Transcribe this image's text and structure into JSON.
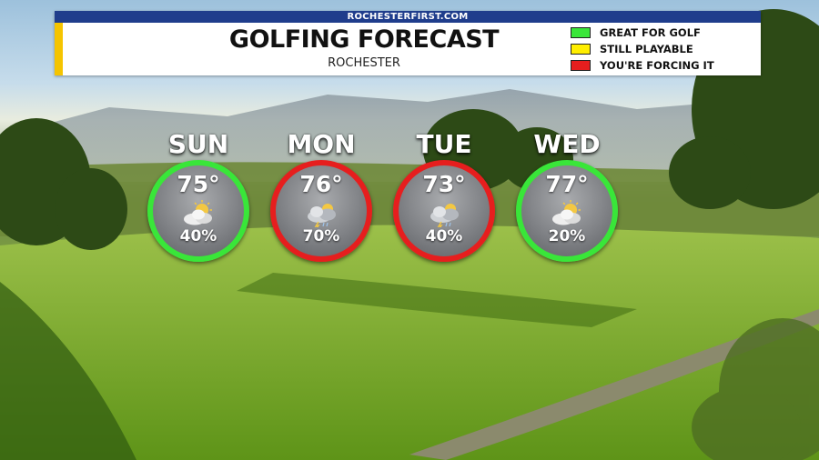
{
  "header": {
    "site": "ROCHESTERFIRST.COM",
    "title": "GOLFING FORECAST",
    "subtitle": "ROCHESTER"
  },
  "legend": [
    {
      "label": "GREAT FOR GOLF",
      "color": "#39e639"
    },
    {
      "label": "STILL PLAYABLE",
      "color": "#ffee00"
    },
    {
      "label": "YOU'RE FORCING IT",
      "color": "#e61e1e"
    }
  ],
  "days": [
    {
      "name": "SUN",
      "temp": "75°",
      "precip": "40%",
      "rating_color": "#39e639",
      "icon": "partly-sunny-icon"
    },
    {
      "name": "MON",
      "temp": "76°",
      "precip": "70%",
      "rating_color": "#e61e1e",
      "icon": "storm-cloud-icon"
    },
    {
      "name": "TUE",
      "temp": "73°",
      "precip": "40%",
      "rating_color": "#e61e1e",
      "icon": "storm-cloud-icon"
    },
    {
      "name": "WED",
      "temp": "77°",
      "precip": "20%",
      "rating_color": "#39e639",
      "icon": "partly-sunny-icon"
    }
  ]
}
